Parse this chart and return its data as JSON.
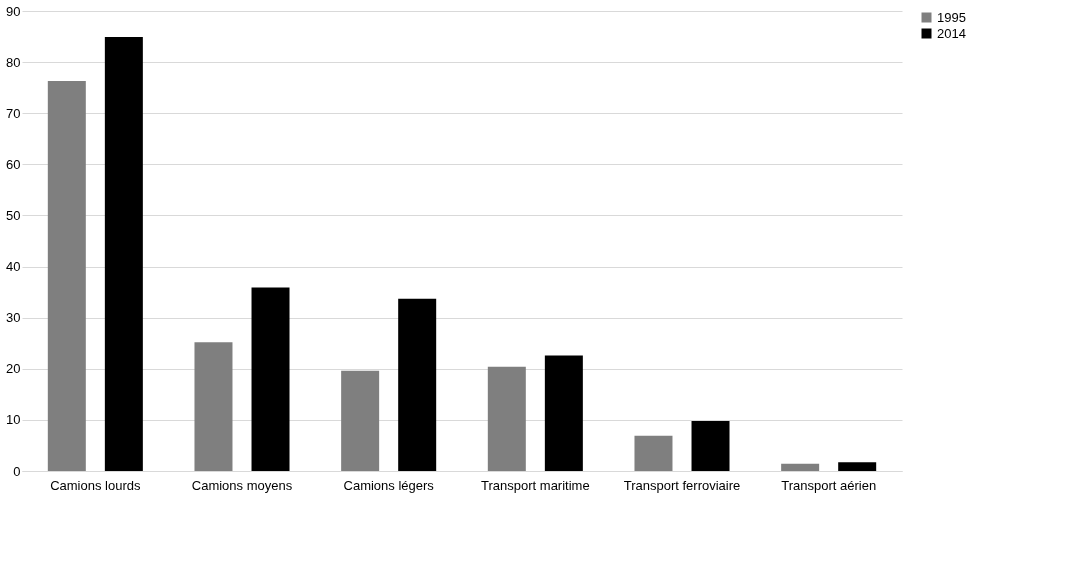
{
  "chart_data": {
    "type": "bar",
    "categories": [
      "Camions lourds",
      "Camions moyens",
      "Camions légers",
      "Transport maritime",
      "Transport ferroviaire",
      "Transport aérien"
    ],
    "series": [
      {
        "name": "1995",
        "color": "#7f7f7f",
        "values": [
          76.3,
          25.2,
          19.6,
          20.4,
          6.9,
          1.4
        ]
      },
      {
        "name": "2014",
        "color": "#000000",
        "values": [
          84.9,
          35.9,
          33.7,
          22.6,
          9.8,
          1.7
        ]
      }
    ],
    "ylim": [
      0,
      90
    ],
    "yticks": [
      0,
      10,
      20,
      30,
      40,
      50,
      60,
      70,
      80,
      90
    ],
    "grid": "y",
    "legend": "right"
  }
}
